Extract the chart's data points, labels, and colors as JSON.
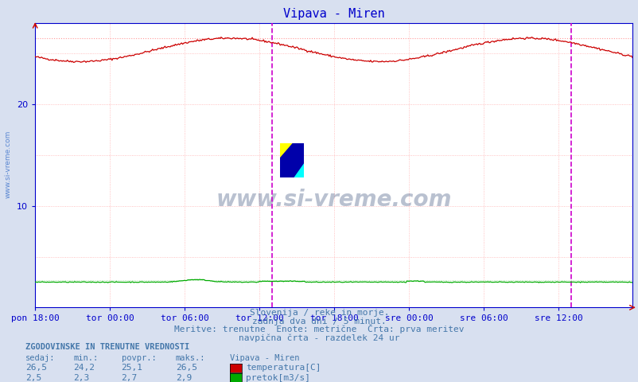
{
  "title": "Vipava - Miren",
  "bg_color": "#d8e0f0",
  "plot_bg_color": "#ffffff",
  "grid_h_color": "#ffb0b0",
  "grid_v_color": "#ffb0b0",
  "temp_color": "#cc0000",
  "flow_color": "#00aa00",
  "temp_ref_color": "#ff9999",
  "flow_ref_color": "#99dd99",
  "vline_color": "#cc00cc",
  "axis_color": "#0000cc",
  "title_color": "#0000cc",
  "text_color": "#4477aa",
  "watermark_color": "#1a3366",
  "side_text_color": "#4477cc",
  "xlabels": [
    "pon 18:00",
    "tor 00:00",
    "tor 06:00",
    "tor 12:00",
    "tor 18:00",
    "sre 00:00",
    "sre 06:00",
    "sre 12:00"
  ],
  "xtick_positions": [
    0,
    72,
    144,
    216,
    288,
    360,
    432,
    504
  ],
  "vline_positions": [
    228,
    516
  ],
  "ylim": [
    0,
    28
  ],
  "yticks": [
    10,
    20
  ],
  "n_points": 576,
  "temp_min": 24.2,
  "temp_max": 26.5,
  "temp_avg": 25.1,
  "flow_min": 2.3,
  "flow_max": 2.9,
  "flow_avg": 2.7,
  "flow_current": 2.5,
  "temp_current": 26.5,
  "watermark": "www.si-vreme.com",
  "footer_line1": "Slovenija / reke in morje.",
  "footer_line2": "zadnja dva dni / 5 minut.",
  "footer_line3": "Meritve: trenutne  Enote: metrične  Črta: prva meritev",
  "footer_line4": "navpična črta - razdelek 24 ur",
  "legend_title": "ZGODOVINSKE IN TRENUTNE VREDNOSTI",
  "legend_headers": [
    "sedaj:",
    "min.:",
    "povpr.:",
    "maks.:",
    "Vipava - Miren"
  ],
  "legend_row1": [
    "26,5",
    "24,2",
    "25,1",
    "26,5",
    "temperatura[C]"
  ],
  "legend_row2": [
    "2,5",
    "2,3",
    "2,7",
    "2,9",
    "pretok[m3/s]"
  ]
}
